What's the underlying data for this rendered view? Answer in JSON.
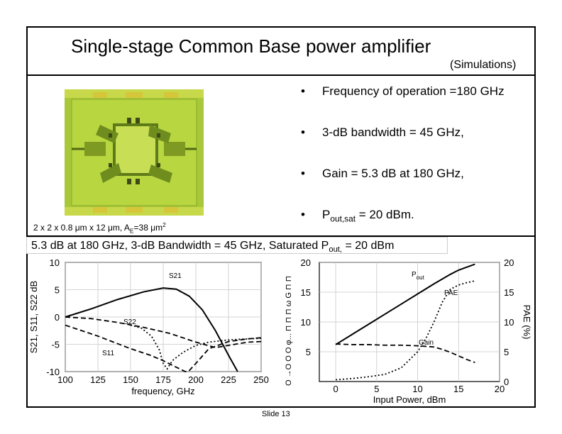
{
  "title": "Single-stage Common Base power amplifier",
  "subtitle": "(Simulations)",
  "chip_caption": {
    "pre": "2 x 2 x 0.8 ",
    "mu1": "μ",
    "mid1": "m x 12 ",
    "mu2": "μ",
    "mid2": "m, A",
    "sub_e": "E",
    "mid3": "=38 ",
    "mu3": "μ",
    "m": "m",
    "sup2": "2"
  },
  "bullets": [
    {
      "text": "Frequency of operation =180 GHz"
    },
    {
      "text": "3-dB bandwidth = 45 GHz,"
    },
    {
      "text": "Gain = 5.3 dB at 180 GHz,"
    },
    {
      "text_pre": "P",
      "text_sub": "out,sat",
      "text_post": " = 20 dBm."
    }
  ],
  "bullet_symbol": "•",
  "summary": {
    "pre": "5.3 dB at 180 GHz, 3-dB Bandwidth = 45 GHz, Saturated P",
    "sub": "out,",
    "post": " = 20 dBm"
  },
  "slide_number": "Slide 13",
  "colors": {
    "chip_bg": "#a8c83a",
    "chip_pad": "#c9c23a",
    "chip_dark": "#6e8a1a",
    "grid": "#c8c8c8"
  },
  "chart_data": [
    {
      "type": "line",
      "xlabel": "frequency, GHz",
      "ylabel": "S21, S11, S22 dB",
      "xlim": [
        100,
        250
      ],
      "ylim": [
        -10,
        10
      ],
      "xticks": [
        "100",
        "125",
        "150",
        "175",
        "200",
        "225",
        "250"
      ],
      "yticks": [
        "10",
        "5",
        "0",
        "-5",
        "-10"
      ],
      "series": [
        {
          "name": "S21",
          "style": "solid",
          "x": [
            100,
            120,
            140,
            160,
            175,
            185,
            195,
            205,
            215,
            225,
            232
          ],
          "y": [
            0,
            1.5,
            3.2,
            4.6,
            5.3,
            5.1,
            3.8,
            1.3,
            -2.5,
            -7,
            -10
          ]
        },
        {
          "name": "S22",
          "style": "dashed",
          "x": [
            100,
            120,
            140,
            160,
            180,
            200,
            215,
            230,
            240,
            250
          ],
          "y": [
            0,
            -0.3,
            -1,
            -1.9,
            -3,
            -4.6,
            -5.6,
            -5,
            -4.6,
            -4.5
          ]
        },
        {
          "name": "S11",
          "style": "dashed",
          "x": [
            100,
            125,
            150,
            165,
            175,
            185,
            192,
            195,
            200,
            210,
            225,
            240,
            250
          ],
          "y": [
            -1.5,
            -3.5,
            -5.8,
            -7,
            -8,
            -9.2,
            -10,
            -9.8,
            -8.5,
            -5.8,
            -4.5,
            -4,
            -3.8
          ]
        },
        {
          "name": "",
          "style": "dotted",
          "x": [
            150,
            158,
            166,
            172,
            175,
            178,
            182,
            190,
            200,
            210,
            225,
            240,
            250
          ],
          "y": [
            -1.5,
            -2,
            -3.5,
            -6,
            -8.5,
            -9.5,
            -8,
            -6.5,
            -5.2,
            -4.6,
            -4.2,
            -4,
            -3.9
          ]
        }
      ]
    },
    {
      "type": "line",
      "xlabel": "Input Power, dBm",
      "ylabel_right": "PAE (%)",
      "xlim": [
        -2,
        20
      ],
      "ylim": [
        0,
        20
      ],
      "xticks": [
        "0",
        "5",
        "10",
        "15",
        "20"
      ],
      "yticks": [
        "20",
        "15",
        "10",
        "5"
      ],
      "yticks_right": [
        "20",
        "15",
        "10",
        "5",
        "0"
      ],
      "left_axis_glyphs": "O →O O O φ... ⊓ ⊓ ⊓ ω G ⊓ ⊓",
      "series": [
        {
          "name": "Pout",
          "style": "solid",
          "x": [
            0,
            2,
            4,
            6,
            8,
            10,
            12,
            13,
            14,
            15,
            16,
            17
          ],
          "y": [
            6.2,
            7.9,
            9.6,
            11.3,
            13,
            14.7,
            16.4,
            17.2,
            18,
            18.7,
            19.2,
            19.7
          ]
        },
        {
          "name": "PAE",
          "style": "dotted",
          "x": [
            0,
            2,
            4,
            6,
            8,
            10,
            11,
            12,
            13,
            14,
            15,
            16,
            17
          ],
          "y": [
            0.3,
            0.5,
            0.8,
            1.2,
            2.3,
            5,
            7.2,
            10,
            13.3,
            15.5,
            16.2,
            16.6,
            16.9
          ]
        },
        {
          "name": "Gain",
          "style": "dashed",
          "x": [
            0,
            2,
            4,
            6,
            8,
            10,
            11,
            12,
            13,
            14,
            15,
            16,
            17
          ],
          "y": [
            6.3,
            6.2,
            6.2,
            6.1,
            6.1,
            6,
            5.9,
            5.8,
            5.4,
            4.9,
            4.3,
            3.7,
            3.2
          ]
        }
      ]
    }
  ]
}
